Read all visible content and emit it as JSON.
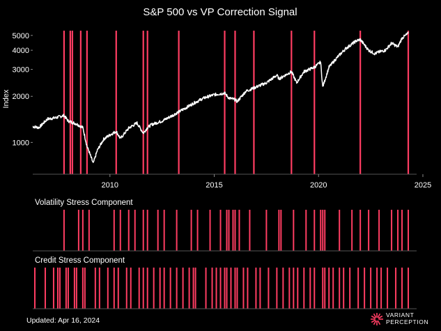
{
  "chart_data": [
    {
      "type": "line",
      "title": "S&P 500 vs VP Correction Signal",
      "ylabel": "Index",
      "y_scale": "log",
      "ylim": [
        620,
        5600
      ],
      "xlim": [
        2006.3,
        2024.7
      ],
      "x_tick_labels": [
        "2010",
        "2015",
        "2020",
        "2025"
      ],
      "y_tick_labels": [
        "1000",
        "2000",
        "3000",
        "4000",
        "5000"
      ],
      "grid": false,
      "colors": {
        "price": "#ffffff",
        "signal": "#ff3d62",
        "background": "#000000"
      },
      "series": [
        {
          "values_are": "S&P 500 index level (approximate, read from chart)",
          "x": [
            2006.3,
            2006.6,
            2007.0,
            2007.4,
            2007.8,
            2008.0,
            2008.4,
            2008.7,
            2008.9,
            2009.0,
            2009.2,
            2009.4,
            2009.7,
            2010.0,
            2010.3,
            2010.5,
            2010.9,
            2011.3,
            2011.6,
            2011.8,
            2012.0,
            2012.5,
            2013.0,
            2013.5,
            2014.0,
            2014.5,
            2015.0,
            2015.5,
            2015.7,
            2016.0,
            2016.1,
            2016.5,
            2017.0,
            2017.5,
            2018.0,
            2018.1,
            2018.7,
            2018.95,
            2019.3,
            2019.8,
            2020.1,
            2020.2,
            2020.5,
            2020.9,
            2021.3,
            2021.8,
            2022.0,
            2022.4,
            2022.7,
            2022.9,
            2023.2,
            2023.5,
            2023.8,
            2024.0,
            2024.3
          ],
          "y": [
            1270,
            1250,
            1420,
            1450,
            1500,
            1380,
            1320,
            1250,
            940,
            870,
            730,
            890,
            1050,
            1120,
            1180,
            1060,
            1240,
            1340,
            1150,
            1250,
            1310,
            1380,
            1500,
            1640,
            1800,
            1950,
            2050,
            2100,
            1950,
            1900,
            1850,
            2150,
            2300,
            2450,
            2750,
            2600,
            2900,
            2450,
            2900,
            3100,
            3350,
            2300,
            3100,
            3600,
            4100,
            4600,
            4700,
            4000,
            3800,
            3900,
            4000,
            4450,
            4200,
            4800,
            5150
          ]
        }
      ],
      "correction_signals": [
        2007.8,
        2008.1,
        2008.2,
        2008.6,
        2008.9,
        2010.3,
        2011.6,
        2011.8,
        2013.3,
        2015.5,
        2016.0,
        2016.9,
        2018.7,
        2019.8,
        2022.0,
        2024.3
      ]
    },
    {
      "type": "bar",
      "title": "Volatility Stress Component",
      "x_signals": [
        2007.8,
        2008.5,
        2008.7,
        2009.0,
        2010.2,
        2010.5,
        2010.9,
        2011.2,
        2011.6,
        2011.8,
        2012.3,
        2012.6,
        2013.2,
        2013.9,
        2014.2,
        2014.8,
        2015.3,
        2015.6,
        2015.7,
        2015.9,
        2016.0,
        2016.2,
        2016.7,
        2017.5,
        2018.1,
        2018.2,
        2018.8,
        2019.4,
        2019.8,
        2020.1,
        2020.2,
        2020.3,
        2021.0,
        2021.6,
        2022.0,
        2022.4,
        2022.9,
        2023.5,
        2023.8,
        2024.0,
        2024.3
      ]
    },
    {
      "type": "bar",
      "title": "Credit Stress Component",
      "x_signals": [
        2006.4,
        2006.9,
        2007.3,
        2007.5,
        2007.6,
        2007.9,
        2008.0,
        2008.3,
        2008.4,
        2008.7,
        2008.8,
        2009.3,
        2009.5,
        2009.9,
        2010.2,
        2010.4,
        2010.8,
        2011.0,
        2011.4,
        2011.6,
        2011.8,
        2012.1,
        2012.4,
        2012.6,
        2012.9,
        2013.2,
        2013.5,
        2013.8,
        2014.0,
        2014.1,
        2014.6,
        2014.9,
        2015.1,
        2015.3,
        2015.5,
        2015.6,
        2015.8,
        2016.0,
        2016.1,
        2016.4,
        2016.6,
        2017.0,
        2017.2,
        2017.6,
        2018.0,
        2018.3,
        2018.6,
        2018.8,
        2019.0,
        2019.3,
        2019.6,
        2019.8,
        2020.2,
        2020.3,
        2020.5,
        2020.7,
        2021.0,
        2021.2,
        2021.5,
        2021.9,
        2022.2,
        2022.5,
        2022.8,
        2023.0,
        2023.3,
        2023.7,
        2024.0,
        2024.3
      ]
    }
  ],
  "footer": {
    "updated": "Updated: Apr 16, 2024",
    "brand_line1": "VARIANT",
    "brand_line2": "PERCEPTION"
  }
}
